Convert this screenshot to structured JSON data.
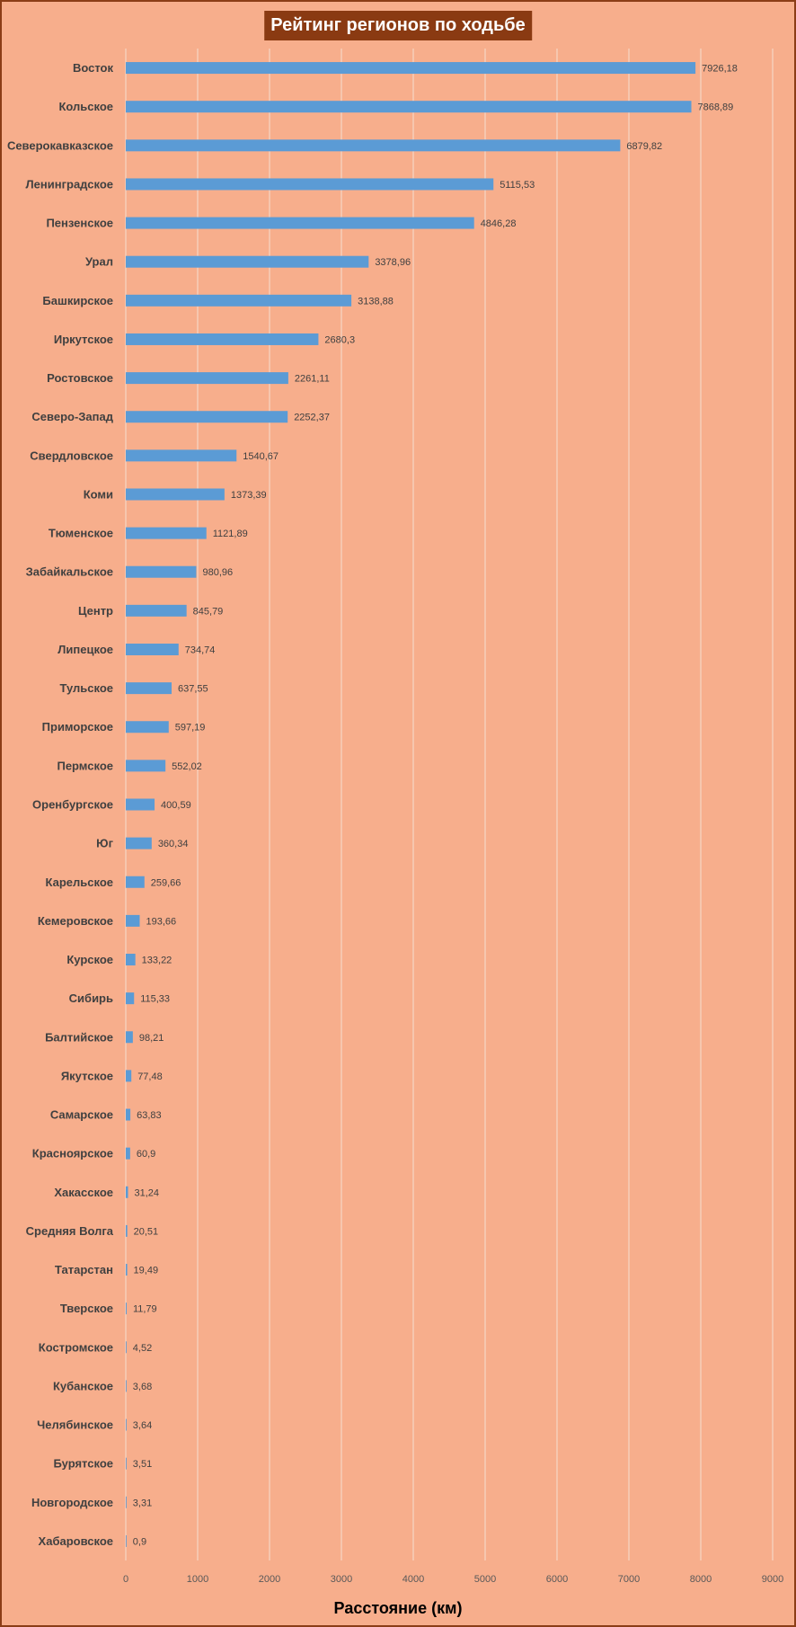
{
  "chart_data": {
    "type": "bar",
    "orientation": "horizontal",
    "title": "Рейтинг регионов по ходьбе",
    "xlabel": "Расстояние (км)",
    "ylabel": "",
    "xlim": [
      0,
      9000
    ],
    "ticks": [
      "0",
      "1000",
      "2000",
      "3000",
      "4000",
      "5000",
      "6000",
      "7000",
      "8000",
      "9000"
    ],
    "grid": true,
    "bar_color": "#5b9bd5",
    "background_color": "#f7ae8c",
    "title_background": "#8a3a12",
    "categories": [
      "Восток",
      "Кольское",
      "Северокавказское",
      "Ленинградское",
      "Пензенское",
      "Урал",
      "Башкирское",
      "Иркутское",
      "Ростовское",
      "Северо-Запад",
      "Свердловское",
      "Коми",
      "Тюменское",
      "Забайкальское",
      "Центр",
      "Липецкое",
      "Тульское",
      "Приморское",
      "Пермское",
      "Оренбургское",
      "Юг",
      "Карельское",
      "Кемеровское",
      "Курское",
      "Сибирь",
      "Балтийское",
      "Якутское",
      "Самарское",
      "Красноярское",
      "Хакасское",
      "Средняя Волга",
      "Татарстан",
      "Тверское",
      "Костромское",
      "Кубанское",
      "Челябинское",
      "Бурятское",
      "Новгородское",
      "Хабаровское"
    ],
    "values": [
      7926.18,
      7868.89,
      6879.82,
      5115.53,
      4846.28,
      3378.96,
      3138.88,
      2680.3,
      2261.11,
      2252.37,
      1540.67,
      1373.39,
      1121.89,
      980.96,
      845.79,
      734.74,
      637.55,
      597.19,
      552.02,
      400.59,
      360.34,
      259.66,
      193.66,
      133.22,
      115.33,
      98.21,
      77.48,
      63.83,
      60.9,
      31.24,
      20.51,
      19.49,
      11.79,
      4.52,
      3.68,
      3.64,
      3.51,
      3.31,
      0.9
    ],
    "value_labels": [
      "7926,18",
      "7868,89",
      "6879,82",
      "5115,53",
      "4846,28",
      "3378,96",
      "3138,88",
      "2680,3",
      "2261,11",
      "2252,37",
      "1540,67",
      "1373,39",
      "1121,89",
      "980,96",
      "845,79",
      "734,74",
      "637,55",
      "597,19",
      "552,02",
      "400,59",
      "360,34",
      "259,66",
      "193,66",
      "133,22",
      "115,33",
      "98,21",
      "77,48",
      "63,83",
      "60,9",
      "31,24",
      "20,51",
      "19,49",
      "11,79",
      "4,52",
      "3,68",
      "3,64",
      "3,51",
      "3,31",
      "0,9"
    ]
  }
}
